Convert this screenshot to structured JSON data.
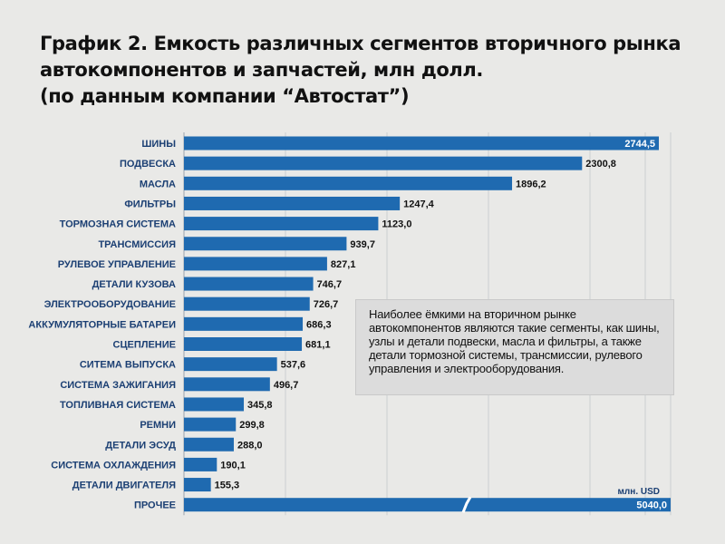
{
  "title_lines": [
    "График 2. Емкость различных сегментов вторичного рынка",
    "автокомпонентов и запчастей, млн долл.",
    "(по данным компании “Автостат”)"
  ],
  "note": "Наиболее ёмкими на вторичном рынке автокомпонентов являются такие сегменты, как шины, узлы и детали подвески, масла и фильтры, а также детали тормозной системы, трансмиссии, рулевого управления и электрооборудования.",
  "colors": {
    "bar": "#1f6ab0",
    "background": "#e9e9e7",
    "label": "#1b3f73"
  },
  "chart_data": {
    "type": "bar",
    "orientation": "horizontal",
    "unit_label": "млн. USD",
    "axis_break_on_last_bar": true,
    "grid": true,
    "xlim": [
      0,
      2800
    ],
    "categories": [
      "ШИНЫ",
      "ПОДВЕСКА",
      "МАСЛА",
      "ФИЛЬТРЫ",
      "ТОРМОЗНАЯ СИСТЕМА",
      "ТРАНСМИССИЯ",
      "РУЛЕВОЕ УПРАВЛЕНИЕ",
      "ДЕТАЛИ КУЗОВА",
      "ЭЛЕКТРООБОРУДОВАНИЕ",
      "АККУМУЛЯТОРНЫЕ БАТАРЕИ",
      "СЦЕПЛЕНИЕ",
      "СИТЕМА ВЫПУСКА",
      "СИСТЕМА ЗАЖИГАНИЯ",
      "ТОПЛИВНАЯ СИСТЕМА",
      "РЕМНИ",
      "ДЕТАЛИ ЭСУД",
      "СИСТЕМА ОХЛАЖДЕНИЯ",
      "ДЕТАЛИ ДВИГАТЕЛЯ",
      "ПРОЧЕЕ"
    ],
    "values": [
      2744.5,
      2300.8,
      1896.2,
      1247.4,
      1123.0,
      939.7,
      827.1,
      746.7,
      726.7,
      686.3,
      681.1,
      537.6,
      496.7,
      345.8,
      299.8,
      288.0,
      190.1,
      155.3,
      5040.0
    ],
    "value_labels": [
      "2744,5",
      "2300,8",
      "1896,2",
      "1247,4",
      "1123,0",
      "939,7",
      "827,1",
      "746,7",
      "726,7",
      "686,3",
      "681,1",
      "537,6",
      "496,7",
      "345,8",
      "299,8",
      "288,0",
      "190,1",
      "155,3",
      "5040,0"
    ]
  }
}
